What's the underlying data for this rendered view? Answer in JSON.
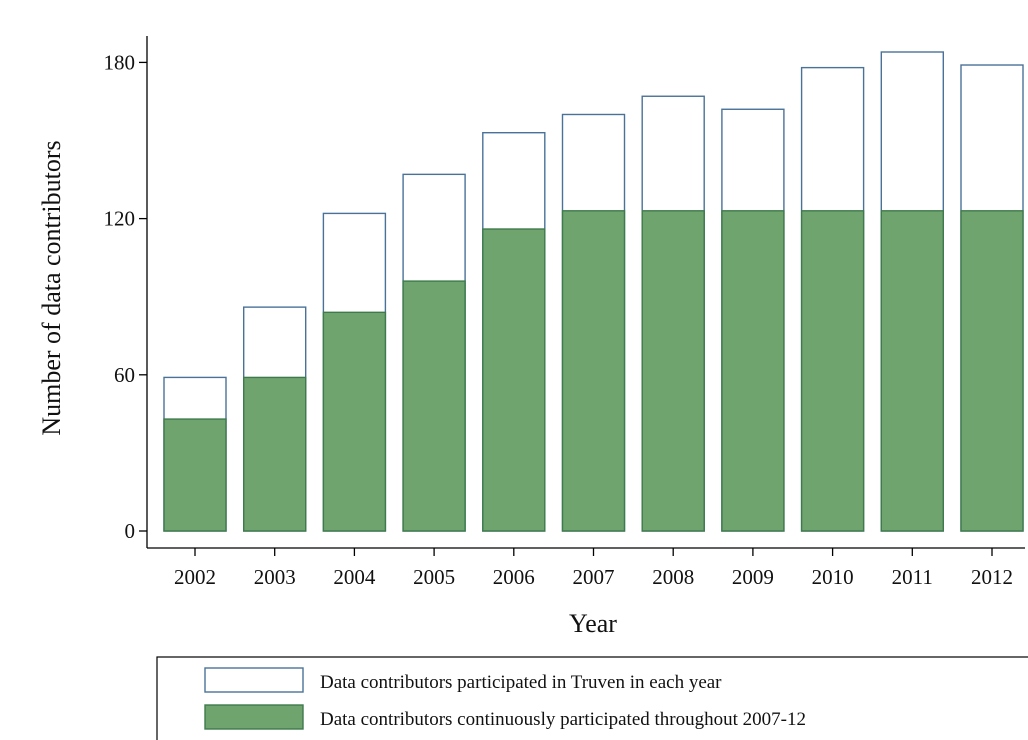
{
  "chart_data": {
    "type": "bar",
    "categories": [
      "2002",
      "2003",
      "2004",
      "2005",
      "2006",
      "2007",
      "2008",
      "2009",
      "2010",
      "2011",
      "2012"
    ],
    "series": [
      {
        "name": "Data contributors participated in Truven in each year",
        "values": [
          59,
          86,
          122,
          137,
          153,
          160,
          167,
          162,
          178,
          184,
          179
        ],
        "style": "outline",
        "color": "#4a7298"
      },
      {
        "name": "Data contributors continuously participated throughout 2007-12",
        "values": [
          43,
          59,
          84,
          96,
          116,
          123,
          123,
          123,
          123,
          123,
          123
        ],
        "style": "filled",
        "color": "#6fa46f",
        "edge_color": "#3e7a4b"
      }
    ],
    "xlabel": "Year",
    "ylabel": "Number of data contributors",
    "ylim": [
      0,
      184
    ],
    "yticks": [
      0,
      60,
      120,
      180
    ],
    "grid": false,
    "legend_position": "bottom"
  }
}
